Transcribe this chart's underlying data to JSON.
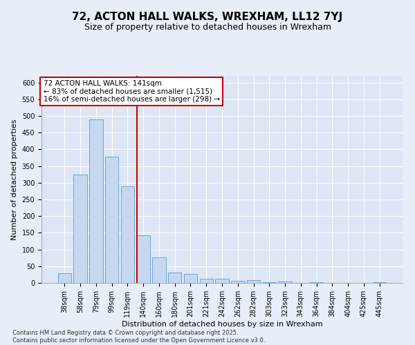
{
  "title": "72, ACTON HALL WALKS, WREXHAM, LL12 7YJ",
  "subtitle": "Size of property relative to detached houses in Wrexham",
  "xlabel": "Distribution of detached houses by size in Wrexham",
  "ylabel": "Number of detached properties",
  "categories": [
    "38sqm",
    "58sqm",
    "79sqm",
    "99sqm",
    "119sqm",
    "140sqm",
    "160sqm",
    "180sqm",
    "201sqm",
    "221sqm",
    "242sqm",
    "262sqm",
    "282sqm",
    "303sqm",
    "323sqm",
    "343sqm",
    "364sqm",
    "384sqm",
    "404sqm",
    "425sqm",
    "445sqm"
  ],
  "values": [
    28,
    325,
    490,
    378,
    290,
    143,
    76,
    30,
    27,
    13,
    13,
    6,
    8,
    3,
    4,
    1,
    2,
    1,
    1,
    1,
    3
  ],
  "bar_color": "#c5d8f0",
  "bar_edge_color": "#5b9bd5",
  "vline_x": 4.575,
  "vline_color": "#cc0000",
  "annotation_text": "72 ACTON HALL WALKS: 141sqm\n← 83% of detached houses are smaller (1,515)\n16% of semi-detached houses are larger (298) →",
  "annotation_box_color": "#ffffff",
  "annotation_box_edgecolor": "#cc0000",
  "background_color": "#e8eef7",
  "plot_background": "#dce6f5",
  "grid_color": "#ffffff",
  "footer": "Contains HM Land Registry data © Crown copyright and database right 2025.\nContains public sector information licensed under the Open Government Licence v3.0.",
  "ylim": [
    0,
    620
  ],
  "yticks": [
    0,
    50,
    100,
    150,
    200,
    250,
    300,
    350,
    400,
    450,
    500,
    550,
    600
  ],
  "title_fontsize": 11,
  "subtitle_fontsize": 9,
  "axis_label_fontsize": 8,
  "tick_fontsize": 7,
  "footer_fontsize": 6,
  "annotation_fontsize": 7.5
}
